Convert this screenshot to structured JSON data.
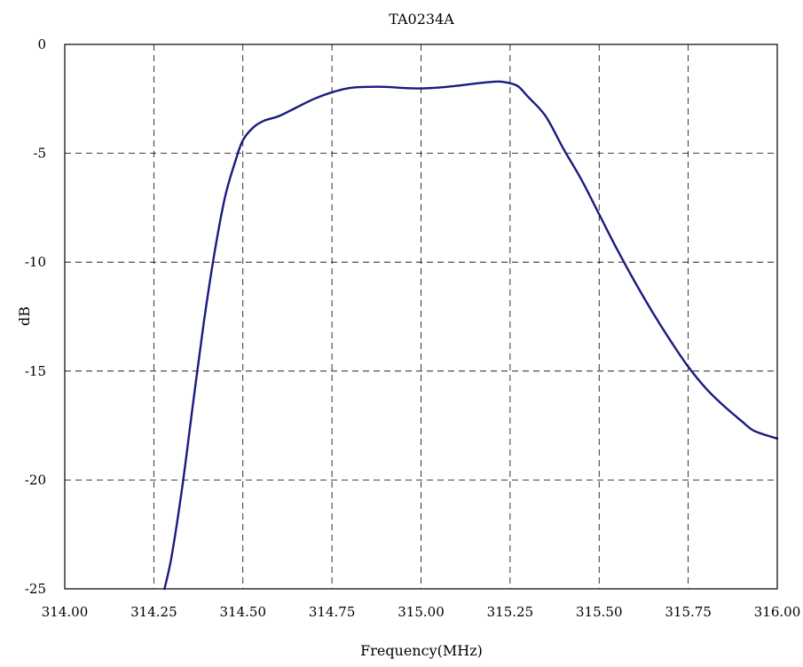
{
  "chart_data": {
    "type": "line",
    "title": "TA0234A",
    "xlabel": "Frequency(MHz)",
    "ylabel": "dB",
    "xlim": [
      314.0,
      316.0
    ],
    "ylim": [
      -25,
      0
    ],
    "x_ticks": [
      "314.00",
      "314.25",
      "314.50",
      "314.75",
      "315.00",
      "315.25",
      "315.50",
      "315.75",
      "316.00"
    ],
    "y_ticks": [
      "0",
      "-5",
      "-10",
      "-15",
      "-20",
      "-25"
    ],
    "grid": true,
    "grid_style": "dashed",
    "legend": "none",
    "series": [
      {
        "color": "#1a1a80",
        "x": [
          314.28,
          314.3,
          314.33,
          314.36,
          314.39,
          314.42,
          314.45,
          314.48,
          314.5,
          314.53,
          314.56,
          314.6,
          314.65,
          314.7,
          314.75,
          314.8,
          314.85,
          314.9,
          314.95,
          315.0,
          315.05,
          315.1,
          315.15,
          315.2,
          315.23,
          315.27,
          315.3,
          315.35,
          315.4,
          315.45,
          315.5,
          315.55,
          315.6,
          315.65,
          315.7,
          315.75,
          315.8,
          315.85,
          315.9,
          315.93,
          315.96,
          316.0
        ],
        "y": [
          -25.0,
          -23.5,
          -20.3,
          -16.5,
          -12.8,
          -9.6,
          -7.0,
          -5.3,
          -4.4,
          -3.8,
          -3.5,
          -3.3,
          -2.9,
          -2.5,
          -2.2,
          -2.0,
          -1.95,
          -1.95,
          -2.0,
          -2.02,
          -1.98,
          -1.9,
          -1.8,
          -1.72,
          -1.72,
          -1.9,
          -2.4,
          -3.3,
          -4.8,
          -6.2,
          -7.8,
          -9.4,
          -10.9,
          -12.3,
          -13.6,
          -14.8,
          -15.8,
          -16.6,
          -17.3,
          -17.7,
          -17.9,
          -18.1
        ]
      }
    ]
  }
}
